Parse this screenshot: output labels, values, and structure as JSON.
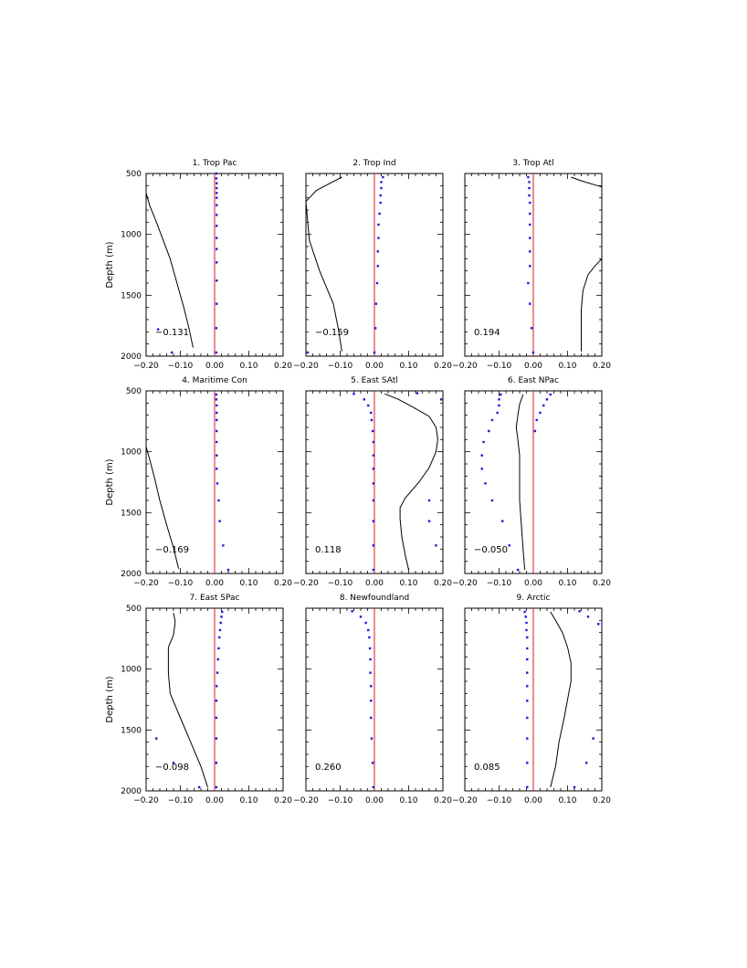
{
  "figure": {
    "ylabel": "Depth (m)",
    "xlim": [
      -0.2,
      0.2
    ],
    "ylim": [
      500,
      2000
    ],
    "xticks": [
      "−0.20",
      "−0.10",
      "0.00",
      "0.10",
      "0.20"
    ],
    "yticks": [
      "500",
      "1000",
      "1500",
      "2000"
    ],
    "zero_line_color": "#e0151b",
    "dot_color": "#1a1adf",
    "line_color": "#000000"
  },
  "chart_data": [
    {
      "type": "line",
      "title": "1. Trop Pac",
      "annotation": "−0.131",
      "line": [
        [
          -0.2,
          660
        ],
        [
          -0.19,
          760
        ],
        [
          -0.17,
          900
        ],
        [
          -0.15,
          1050
        ],
        [
          -0.13,
          1200
        ],
        [
          -0.11,
          1400
        ],
        [
          -0.09,
          1600
        ],
        [
          -0.075,
          1770
        ],
        [
          -0.063,
          1930
        ]
      ],
      "points": [
        [
          0.005,
          500
        ],
        [
          0.005,
          540
        ],
        [
          0.006,
          580
        ],
        [
          0.006,
          620
        ],
        [
          0.006,
          660
        ],
        [
          0.006,
          700
        ],
        [
          0.006,
          760
        ],
        [
          0.006,
          840
        ],
        [
          0.006,
          930
        ],
        [
          0.006,
          1030
        ],
        [
          0.006,
          1120
        ],
        [
          0.006,
          1230
        ],
        [
          0.006,
          1380
        ],
        [
          0.006,
          1570
        ],
        [
          0.005,
          1770
        ],
        [
          -0.165,
          1780
        ],
        [
          -0.125,
          1970
        ],
        [
          0.005,
          1970
        ]
      ]
    },
    {
      "type": "line",
      "title": "2. Trop Ind",
      "annotation": "−0.159",
      "line": [
        [
          -0.095,
          530
        ],
        [
          -0.13,
          580
        ],
        [
          -0.17,
          640
        ],
        [
          -0.2,
          730
        ],
        [
          -0.19,
          1050
        ],
        [
          -0.16,
          1300
        ],
        [
          -0.12,
          1570
        ],
        [
          -0.105,
          1780
        ],
        [
          -0.095,
          1960
        ]
      ],
      "points": [
        [
          0.025,
          530
        ],
        [
          0.02,
          570
        ],
        [
          0.02,
          620
        ],
        [
          0.018,
          680
        ],
        [
          0.018,
          740
        ],
        [
          0.015,
          830
        ],
        [
          0.012,
          920
        ],
        [
          0.012,
          1030
        ],
        [
          0.01,
          1140
        ],
        [
          0.01,
          1260
        ],
        [
          0.008,
          1400
        ],
        [
          0.005,
          1570
        ],
        [
          0.003,
          1770
        ],
        [
          0.0,
          1970
        ],
        [
          -0.195,
          1970
        ]
      ]
    },
    {
      "type": "line",
      "title": "3. Trop Atl",
      "annotation": "0.194",
      "line": [
        [
          0.11,
          530
        ],
        [
          0.14,
          560
        ],
        [
          0.2,
          610
        ],
        [
          0.2,
          1200
        ],
        [
          0.18,
          1260
        ],
        [
          0.16,
          1330
        ],
        [
          0.145,
          1460
        ],
        [
          0.14,
          1620
        ],
        [
          0.14,
          1800
        ],
        [
          0.14,
          1960
        ]
      ],
      "points": [
        [
          -0.015,
          530
        ],
        [
          -0.012,
          570
        ],
        [
          -0.012,
          620
        ],
        [
          -0.012,
          680
        ],
        [
          -0.01,
          740
        ],
        [
          -0.01,
          830
        ],
        [
          -0.01,
          920
        ],
        [
          -0.01,
          1030
        ],
        [
          -0.01,
          1140
        ],
        [
          -0.01,
          1260
        ],
        [
          -0.015,
          1400
        ],
        [
          -0.01,
          1570
        ],
        [
          -0.005,
          1770
        ],
        [
          0.0,
          1970
        ]
      ]
    },
    {
      "type": "line",
      "title": "4. Maritime Con",
      "annotation": "−0.169",
      "line": [
        [
          -0.2,
          960
        ],
        [
          -0.19,
          1060
        ],
        [
          -0.175,
          1220
        ],
        [
          -0.16,
          1400
        ],
        [
          -0.14,
          1600
        ],
        [
          -0.12,
          1790
        ],
        [
          -0.105,
          1960
        ]
      ],
      "points": [
        [
          0.005,
          530
        ],
        [
          0.005,
          570
        ],
        [
          0.006,
          620
        ],
        [
          0.006,
          680
        ],
        [
          0.006,
          740
        ],
        [
          0.006,
          830
        ],
        [
          0.006,
          920
        ],
        [
          0.006,
          1030
        ],
        [
          0.006,
          1140
        ],
        [
          0.008,
          1260
        ],
        [
          0.012,
          1400
        ],
        [
          0.015,
          1570
        ],
        [
          0.025,
          1770
        ],
        [
          0.04,
          1970
        ]
      ]
    },
    {
      "type": "line",
      "title": "5. East SAtl",
      "annotation": "0.118",
      "line": [
        [
          0.03,
          525
        ],
        [
          0.07,
          570
        ],
        [
          0.11,
          630
        ],
        [
          0.16,
          710
        ],
        [
          0.18,
          800
        ],
        [
          0.185,
          900
        ],
        [
          0.18,
          1000
        ],
        [
          0.16,
          1130
        ],
        [
          0.13,
          1250
        ],
        [
          0.09,
          1380
        ],
        [
          0.075,
          1460
        ],
        [
          0.075,
          1550
        ],
        [
          0.08,
          1700
        ],
        [
          0.09,
          1850
        ],
        [
          0.1,
          1970
        ]
      ],
      "points": [
        [
          -0.06,
          525
        ],
        [
          -0.03,
          570
        ],
        [
          -0.018,
          620
        ],
        [
          -0.01,
          680
        ],
        [
          -0.008,
          740
        ],
        [
          -0.005,
          830
        ],
        [
          -0.003,
          920
        ],
        [
          -0.003,
          1030
        ],
        [
          -0.003,
          1140
        ],
        [
          -0.003,
          1260
        ],
        [
          -0.003,
          1400
        ],
        [
          0.16,
          1400
        ],
        [
          -0.003,
          1570
        ],
        [
          0.16,
          1570
        ],
        [
          -0.003,
          1770
        ],
        [
          0.18,
          1770
        ],
        [
          -0.003,
          1970
        ],
        [
          0.125,
          520
        ],
        [
          0.195,
          570
        ]
      ]
    },
    {
      "type": "line",
      "title": "6. East NPac",
      "annotation": "−0.050",
      "line": [
        [
          -0.03,
          530
        ],
        [
          -0.04,
          610
        ],
        [
          -0.045,
          700
        ],
        [
          -0.05,
          800
        ],
        [
          -0.045,
          900
        ],
        [
          -0.04,
          1030
        ],
        [
          -0.04,
          1200
        ],
        [
          -0.04,
          1400
        ],
        [
          -0.035,
          1600
        ],
        [
          -0.03,
          1800
        ],
        [
          -0.025,
          1970
        ]
      ],
      "points": [
        [
          0.05,
          530
        ],
        [
          0.04,
          570
        ],
        [
          0.03,
          620
        ],
        [
          0.02,
          680
        ],
        [
          0.01,
          740
        ],
        [
          0.005,
          830
        ],
        [
          -0.095,
          530
        ],
        [
          -0.1,
          570
        ],
        [
          -0.1,
          620
        ],
        [
          -0.105,
          680
        ],
        [
          -0.12,
          740
        ],
        [
          -0.13,
          830
        ],
        [
          -0.145,
          920
        ],
        [
          -0.15,
          1030
        ],
        [
          -0.15,
          1140
        ],
        [
          -0.14,
          1260
        ],
        [
          -0.12,
          1400
        ],
        [
          -0.09,
          1570
        ],
        [
          -0.07,
          1770
        ],
        [
          -0.045,
          1970
        ]
      ]
    },
    {
      "type": "line",
      "title": "7. East SPac",
      "annotation": "−0.098",
      "line": [
        [
          -0.12,
          540
        ],
        [
          -0.115,
          610
        ],
        [
          -0.12,
          720
        ],
        [
          -0.135,
          820
        ],
        [
          -0.135,
          1030
        ],
        [
          -0.13,
          1200
        ],
        [
          -0.1,
          1400
        ],
        [
          -0.07,
          1600
        ],
        [
          -0.04,
          1800
        ],
        [
          -0.02,
          1970
        ]
      ],
      "points": [
        [
          0.022,
          530
        ],
        [
          0.02,
          570
        ],
        [
          0.018,
          620
        ],
        [
          0.016,
          680
        ],
        [
          0.014,
          740
        ],
        [
          0.012,
          830
        ],
        [
          0.01,
          920
        ],
        [
          0.008,
          1030
        ],
        [
          0.006,
          1140
        ],
        [
          0.005,
          1260
        ],
        [
          0.005,
          1400
        ],
        [
          0.005,
          1570
        ],
        [
          0.005,
          1770
        ],
        [
          0.005,
          1970
        ],
        [
          -0.17,
          1570
        ],
        [
          -0.12,
          1770
        ],
        [
          -0.045,
          1970
        ]
      ]
    },
    {
      "type": "line",
      "title": "8. Newfoundland",
      "annotation": "0.260",
      "line": [],
      "points": [
        [
          -0.065,
          525
        ],
        [
          -0.04,
          570
        ],
        [
          -0.025,
          620
        ],
        [
          -0.018,
          680
        ],
        [
          -0.015,
          740
        ],
        [
          -0.013,
          830
        ],
        [
          -0.012,
          920
        ],
        [
          -0.012,
          1030
        ],
        [
          -0.01,
          1140
        ],
        [
          -0.01,
          1260
        ],
        [
          -0.01,
          1400
        ],
        [
          -0.008,
          1570
        ],
        [
          -0.005,
          1770
        ],
        [
          -0.003,
          1970
        ]
      ]
    },
    {
      "type": "line",
      "title": "9. Arctic",
      "annotation": "0.085",
      "line": [
        [
          0.05,
          530
        ],
        [
          0.065,
          600
        ],
        [
          0.085,
          700
        ],
        [
          0.1,
          820
        ],
        [
          0.11,
          950
        ],
        [
          0.11,
          1100
        ],
        [
          0.1,
          1250
        ],
        [
          0.09,
          1400
        ],
        [
          0.075,
          1600
        ],
        [
          0.065,
          1800
        ],
        [
          0.05,
          1970
        ]
      ],
      "points": [
        [
          -0.025,
          530
        ],
        [
          -0.022,
          570
        ],
        [
          -0.02,
          620
        ],
        [
          -0.02,
          680
        ],
        [
          -0.018,
          740
        ],
        [
          -0.018,
          830
        ],
        [
          -0.018,
          920
        ],
        [
          -0.018,
          1030
        ],
        [
          -0.018,
          1140
        ],
        [
          -0.018,
          1260
        ],
        [
          -0.018,
          1400
        ],
        [
          -0.018,
          1570
        ],
        [
          -0.018,
          1770
        ],
        [
          -0.018,
          1970
        ],
        [
          0.135,
          525
        ],
        [
          0.16,
          570
        ],
        [
          0.19,
          630
        ],
        [
          0.175,
          1570
        ],
        [
          0.155,
          1770
        ],
        [
          0.12,
          1970
        ]
      ]
    }
  ]
}
